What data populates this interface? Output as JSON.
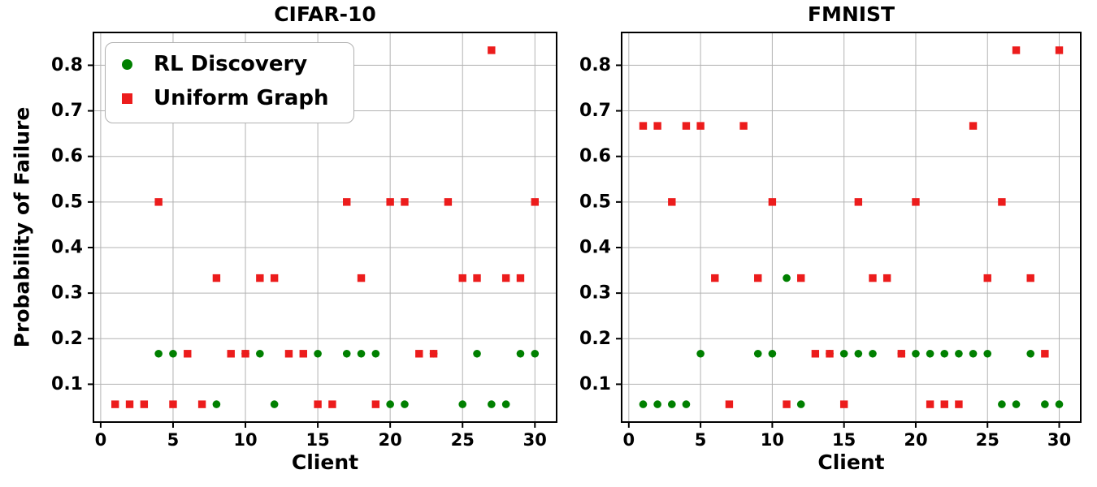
{
  "figure_bg": "#ffffff",
  "legend": {
    "items": [
      {
        "label": "RL Discovery",
        "marker": "circle",
        "color": "#008000"
      },
      {
        "label": "Uniform Graph",
        "marker": "square",
        "color": "#ec1c1c"
      }
    ]
  },
  "chart_data": [
    {
      "type": "scatter",
      "title": "CIFAR-10",
      "xlabel": "Client",
      "ylabel": "Probability of Failure",
      "xlim": [
        -0.5,
        31.5
      ],
      "ylim": [
        0.017,
        0.872
      ],
      "x_ticks": [
        0,
        5,
        10,
        15,
        20,
        25,
        30
      ],
      "y_ticks": [
        0.1,
        0.2,
        0.3,
        0.4,
        0.5,
        0.6,
        0.7,
        0.8
      ],
      "grid": true,
      "grid_color": "#b3b3b3",
      "legend_position": "upper-left",
      "series": [
        {
          "name": "RL Discovery",
          "id": "rl-discovery",
          "marker": "circle",
          "color": "#008000",
          "points": [
            [
              4,
              0.167
            ],
            [
              5,
              0.167
            ],
            [
              8,
              0.056
            ],
            [
              10,
              0.167
            ],
            [
              11,
              0.167
            ],
            [
              12,
              0.056
            ],
            [
              15,
              0.167
            ],
            [
              17,
              0.167
            ],
            [
              18,
              0.167
            ],
            [
              19,
              0.167
            ],
            [
              20,
              0.056
            ],
            [
              21,
              0.056
            ],
            [
              23,
              0.167
            ],
            [
              25,
              0.056
            ],
            [
              26,
              0.167
            ],
            [
              27,
              0.056
            ],
            [
              28,
              0.056
            ],
            [
              29,
              0.167
            ],
            [
              30,
              0.167
            ]
          ]
        },
        {
          "name": "Uniform Graph",
          "id": "uniform-graph",
          "marker": "square",
          "color": "#ec1c1c",
          "points": [
            [
              1,
              0.056
            ],
            [
              2,
              0.056
            ],
            [
              3,
              0.056
            ],
            [
              4,
              0.5
            ],
            [
              5,
              0.056
            ],
            [
              6,
              0.167
            ],
            [
              7,
              0.056
            ],
            [
              8,
              0.333
            ],
            [
              9,
              0.167
            ],
            [
              10,
              0.167
            ],
            [
              11,
              0.333
            ],
            [
              12,
              0.333
            ],
            [
              13,
              0.167
            ],
            [
              14,
              0.167
            ],
            [
              15,
              0.056
            ],
            [
              16,
              0.056
            ],
            [
              17,
              0.5
            ],
            [
              18,
              0.333
            ],
            [
              19,
              0.056
            ],
            [
              20,
              0.5
            ],
            [
              21,
              0.5
            ],
            [
              22,
              0.167
            ],
            [
              23,
              0.167
            ],
            [
              24,
              0.5
            ],
            [
              25,
              0.333
            ],
            [
              26,
              0.333
            ],
            [
              27,
              0.833
            ],
            [
              28,
              0.333
            ],
            [
              29,
              0.333
            ],
            [
              30,
              0.5
            ]
          ]
        }
      ]
    },
    {
      "type": "scatter",
      "title": "FMNIST",
      "xlabel": "Client",
      "ylabel": "",
      "xlim": [
        -0.5,
        31.5
      ],
      "ylim": [
        0.017,
        0.872
      ],
      "x_ticks": [
        0,
        5,
        10,
        15,
        20,
        25,
        30
      ],
      "y_ticks": [
        0.1,
        0.2,
        0.3,
        0.4,
        0.5,
        0.6,
        0.7,
        0.8
      ],
      "grid": true,
      "grid_color": "#b3b3b3",
      "legend_position": "none",
      "series": [
        {
          "name": "RL Discovery",
          "id": "rl-discovery",
          "marker": "circle",
          "color": "#008000",
          "points": [
            [
              1,
              0.056
            ],
            [
              2,
              0.056
            ],
            [
              3,
              0.056
            ],
            [
              4,
              0.056
            ],
            [
              5,
              0.167
            ],
            [
              9,
              0.167
            ],
            [
              10,
              0.167
            ],
            [
              11,
              0.333
            ],
            [
              12,
              0.056
            ],
            [
              14,
              0.167
            ],
            [
              15,
              0.167
            ],
            [
              16,
              0.167
            ],
            [
              17,
              0.167
            ],
            [
              19,
              0.167
            ],
            [
              20,
              0.167
            ],
            [
              21,
              0.167
            ],
            [
              22,
              0.167
            ],
            [
              23,
              0.167
            ],
            [
              24,
              0.167
            ],
            [
              25,
              0.167
            ],
            [
              26,
              0.056
            ],
            [
              27,
              0.056
            ],
            [
              28,
              0.167
            ],
            [
              29,
              0.056
            ],
            [
              30,
              0.056
            ]
          ]
        },
        {
          "name": "Uniform Graph",
          "id": "uniform-graph",
          "marker": "square",
          "color": "#ec1c1c",
          "points": [
            [
              1,
              0.667
            ],
            [
              2,
              0.667
            ],
            [
              3,
              0.5
            ],
            [
              4,
              0.667
            ],
            [
              5,
              0.667
            ],
            [
              6,
              0.333
            ],
            [
              7,
              0.056
            ],
            [
              8,
              0.667
            ],
            [
              9,
              0.333
            ],
            [
              10,
              0.5
            ],
            [
              11,
              0.056
            ],
            [
              12,
              0.333
            ],
            [
              13,
              0.167
            ],
            [
              14,
              0.167
            ],
            [
              15,
              0.056
            ],
            [
              16,
              0.5
            ],
            [
              17,
              0.333
            ],
            [
              18,
              0.333
            ],
            [
              19,
              0.167
            ],
            [
              20,
              0.5
            ],
            [
              21,
              0.056
            ],
            [
              22,
              0.056
            ],
            [
              23,
              0.056
            ],
            [
              24,
              0.667
            ],
            [
              25,
              0.333
            ],
            [
              26,
              0.5
            ],
            [
              27,
              0.833
            ],
            [
              28,
              0.333
            ],
            [
              29,
              0.167
            ],
            [
              30,
              0.833
            ]
          ]
        }
      ]
    }
  ]
}
